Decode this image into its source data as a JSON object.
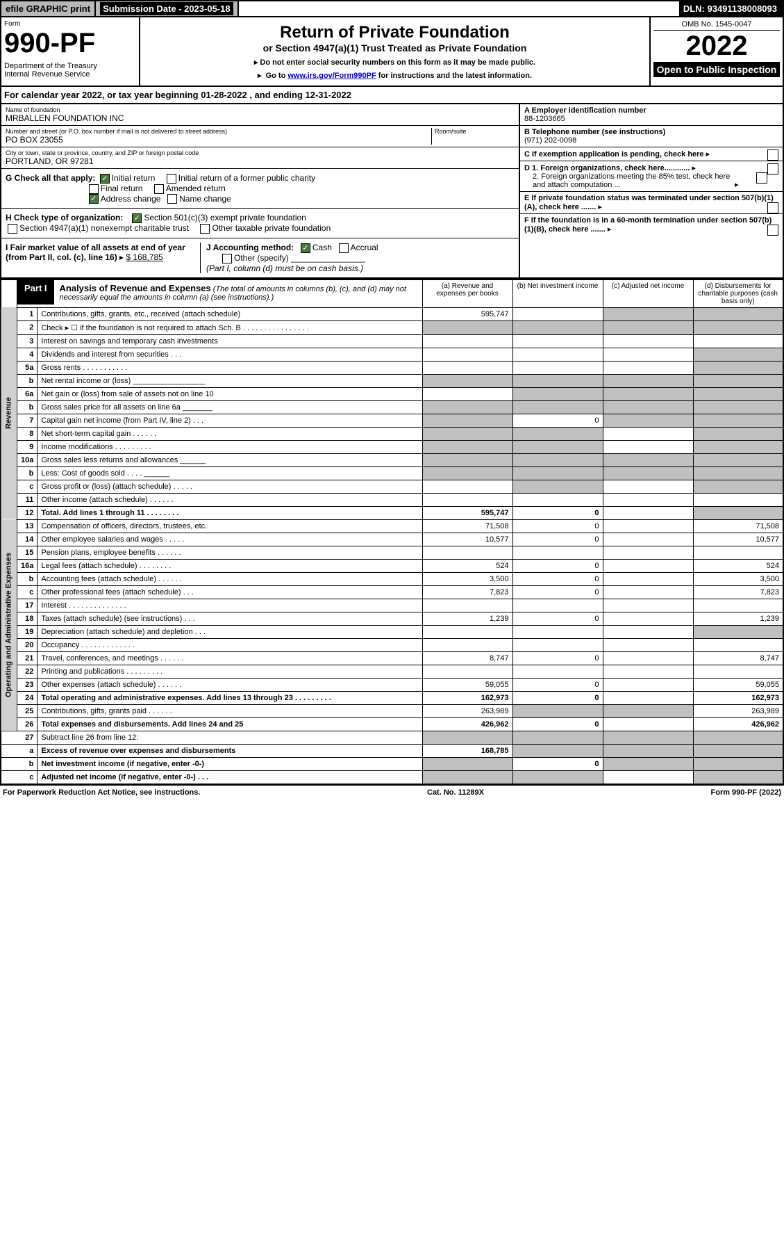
{
  "topbar": {
    "efile": "efile GRAPHIC print",
    "sub_label": "Submission Date - 2023-05-18",
    "dln": "DLN: 93491138008093"
  },
  "header": {
    "form_label": "Form",
    "form_number": "990-PF",
    "dept": "Department of the Treasury\nInternal Revenue Service",
    "title": "Return of Private Foundation",
    "subtitle": "or Section 4947(a)(1) Trust Treated as Private Foundation",
    "note1": "Do not enter social security numbers on this form as it may be made public.",
    "note2_pre": "Go to ",
    "note2_link": "www.irs.gov/Form990PF",
    "note2_post": " for instructions and the latest information.",
    "omb": "OMB No. 1545-0047",
    "year": "2022",
    "open": "Open to Public Inspection"
  },
  "calYear": "For calendar year 2022, or tax year beginning 01-28-2022           , and ending 12-31-2022",
  "foundation": {
    "name_lbl": "Name of foundation",
    "name": "MRBALLEN FOUNDATION INC",
    "addr_lbl": "Number and street (or P.O. box number if mail is not delivered to street address)",
    "addr": "PO BOX 23055",
    "room_lbl": "Room/suite",
    "city_lbl": "City or town, state or province, country, and ZIP or foreign postal code",
    "city": "PORTLAND, OR  97281"
  },
  "right": {
    "A_lbl": "A Employer identification number",
    "A_val": "88-1203665",
    "B_lbl": "B Telephone number (see instructions)",
    "B_val": "(971) 202-0098",
    "C": "C If exemption application is pending, check here",
    "D1": "D 1. Foreign organizations, check here............",
    "D2": "2. Foreign organizations meeting the 85% test, check here and attach computation ...",
    "E": "E If private foundation status was terminated under section 507(b)(1)(A), check here .......",
    "F": "F If the foundation is in a 60-month termination under section 507(b)(1)(B), check here .......",
    "G": "G Check all that apply:",
    "G_opts": [
      "Initial return",
      "Initial return of a former public charity",
      "Final return",
      "Amended return",
      "Address change",
      "Name change"
    ],
    "H": "H Check type of organization:",
    "H1": "Section 501(c)(3) exempt private foundation",
    "H2": "Section 4947(a)(1) nonexempt charitable trust",
    "H3": "Other taxable private foundation",
    "I": "I Fair market value of all assets at end of year (from Part II, col. (c), line 16)",
    "I_val": "$  168,785",
    "J": "J Accounting method:",
    "J_cash": "Cash",
    "J_accrual": "Accrual",
    "J_other": "Other (specify)",
    "J_note": "(Part I, column (d) must be on cash basis.)"
  },
  "part1": {
    "label": "Part I",
    "title": "Analysis of Revenue and Expenses",
    "note": "(The total of amounts in columns (b), (c), and (d) may not necessarily equal the amounts in column (a) (see instructions).)",
    "cols": {
      "a": "(a)  Revenue and expenses per books",
      "b": "(b)  Net investment income",
      "c": "(c)  Adjusted net income",
      "d": "(d)  Disbursements for charitable purposes (cash basis only)"
    }
  },
  "sections": {
    "revenue": "Revenue",
    "opex": "Operating and Administrative Expenses"
  },
  "rows": [
    {
      "n": "1",
      "d": "Contributions, gifts, grants, etc., received (attach schedule)",
      "a": "595,747",
      "grey_b": false,
      "grey_c": true,
      "grey_d": true
    },
    {
      "n": "2",
      "d": "Check ▸ ☐ if the foundation is not required to attach Sch. B   .  .  .  .  .  .  .  .  .  .  .  .  .  .  .  .",
      "grey_a": true,
      "grey_b": true,
      "grey_c": true,
      "grey_d": true
    },
    {
      "n": "3",
      "d": "Interest on savings and temporary cash investments"
    },
    {
      "n": "4",
      "d": "Dividends and interest from securities   .   .   .",
      "grey_d": true
    },
    {
      "n": "5a",
      "d": "Gross rents   .   .   .   .   .   .   .   .   .   .   .",
      "grey_d": true
    },
    {
      "n": "b",
      "d": "Net rental income or (loss) _________________",
      "grey_a": true,
      "grey_b": true,
      "grey_c": true,
      "grey_d": true
    },
    {
      "n": "6a",
      "d": "Net gain or (loss) from sale of assets not on line 10",
      "grey_b": true,
      "grey_c": true,
      "grey_d": true
    },
    {
      "n": "b",
      "d": "Gross sales price for all assets on line 6a _______",
      "grey_a": true,
      "grey_b": true,
      "grey_c": true,
      "grey_d": true
    },
    {
      "n": "7",
      "d": "Capital gain net income (from Part IV, line 2)   .   .   .",
      "grey_a": true,
      "b": "0",
      "grey_c": true,
      "grey_d": true
    },
    {
      "n": "8",
      "d": "Net short-term capital gain   .   .   .   .   .   .",
      "grey_a": true,
      "grey_b": true,
      "grey_d": true
    },
    {
      "n": "9",
      "d": "Income modifications  .   .   .   .   .   .   .   .   .",
      "grey_a": true,
      "grey_b": true,
      "grey_d": true
    },
    {
      "n": "10a",
      "d": "Gross sales less returns and allowances  ______",
      "grey_a": true,
      "grey_b": true,
      "grey_c": true,
      "grey_d": true
    },
    {
      "n": "b",
      "d": "Less: Cost of goods sold   .   .   .   .   ______",
      "grey_a": true,
      "grey_b": true,
      "grey_c": true,
      "grey_d": true
    },
    {
      "n": "c",
      "d": "Gross profit or (loss) (attach schedule)   .   .   .   .   .",
      "grey_b": true,
      "grey_d": true
    },
    {
      "n": "11",
      "d": "Other income (attach schedule)   .   .   .   .   .   ."
    },
    {
      "n": "12",
      "d": "Total. Add lines 1 through 11   .   .   .   .   .   .   .   .",
      "a": "595,747",
      "b": "0",
      "grey_d": true,
      "bold": true
    }
  ],
  "rows2": [
    {
      "n": "13",
      "d": "Compensation of officers, directors, trustees, etc.",
      "a": "71,508",
      "b": "0",
      "dd": "71,508"
    },
    {
      "n": "14",
      "d": "Other employee salaries and wages   .   .   .   .   .",
      "a": "10,577",
      "b": "0",
      "dd": "10,577"
    },
    {
      "n": "15",
      "d": "Pension plans, employee benefits  .   .   .   .   .   ."
    },
    {
      "n": "16a",
      "d": "Legal fees (attach schedule)  .   .   .   .   .   .   .   .",
      "a": "524",
      "b": "0",
      "dd": "524"
    },
    {
      "n": "b",
      "d": "Accounting fees (attach schedule)  .   .   .   .   .   .",
      "a": "3,500",
      "b": "0",
      "dd": "3,500"
    },
    {
      "n": "c",
      "d": "Other professional fees (attach schedule)   .   .   .",
      "a": "7,823",
      "b": "0",
      "dd": "7,823"
    },
    {
      "n": "17",
      "d": "Interest  .   .   .   .   .   .   .   .   .   .   .   .   .   ."
    },
    {
      "n": "18",
      "d": "Taxes (attach schedule) (see instructions)   .   .   .",
      "a": "1,239",
      "b": "0",
      "dd": "1,239"
    },
    {
      "n": "19",
      "d": "Depreciation (attach schedule) and depletion   .   .   .",
      "grey_d": true
    },
    {
      "n": "20",
      "d": "Occupancy  .   .   .   .   .   .   .   .   .   .   .   .   ."
    },
    {
      "n": "21",
      "d": "Travel, conferences, and meetings  .   .   .   .   .   .",
      "a": "8,747",
      "b": "0",
      "dd": "8,747"
    },
    {
      "n": "22",
      "d": "Printing and publications  .   .   .   .   .   .   .   .   ."
    },
    {
      "n": "23",
      "d": "Other expenses (attach schedule)  .   .   .   .   .   .",
      "a": "59,055",
      "b": "0",
      "dd": "59,055"
    },
    {
      "n": "24",
      "d": "Total operating and administrative expenses. Add lines 13 through 23   .   .   .   .   .   .   .   .   .",
      "a": "162,973",
      "b": "0",
      "dd": "162,973",
      "bold": true
    },
    {
      "n": "25",
      "d": "Contributions, gifts, grants paid   .   .   .   .   .   .",
      "a": "263,989",
      "grey_b": true,
      "grey_c": true,
      "dd": "263,989"
    },
    {
      "n": "26",
      "d": "Total expenses and disbursements. Add lines 24 and 25",
      "a": "426,962",
      "b": "0",
      "dd": "426,962",
      "bold": true
    }
  ],
  "rows3": [
    {
      "n": "27",
      "d": "Subtract line 26 from line 12:",
      "grey_a": true,
      "grey_b": true,
      "grey_c": true,
      "grey_d": true
    },
    {
      "n": "a",
      "d": "Excess of revenue over expenses and disbursements",
      "a": "168,785",
      "grey_b": true,
      "grey_c": true,
      "grey_d": true,
      "bold": true
    },
    {
      "n": "b",
      "d": "Net investment income (if negative, enter -0-)",
      "grey_a": true,
      "b": "0",
      "grey_c": true,
      "grey_d": true,
      "bold": true
    },
    {
      "n": "c",
      "d": "Adjusted net income (if negative, enter -0-)   .   .   .",
      "grey_a": true,
      "grey_b": true,
      "grey_d": true,
      "bold": true
    }
  ],
  "footer": {
    "left": "For Paperwork Reduction Act Notice, see instructions.",
    "center": "Cat. No. 11289X",
    "right": "Form 990-PF (2022)"
  }
}
